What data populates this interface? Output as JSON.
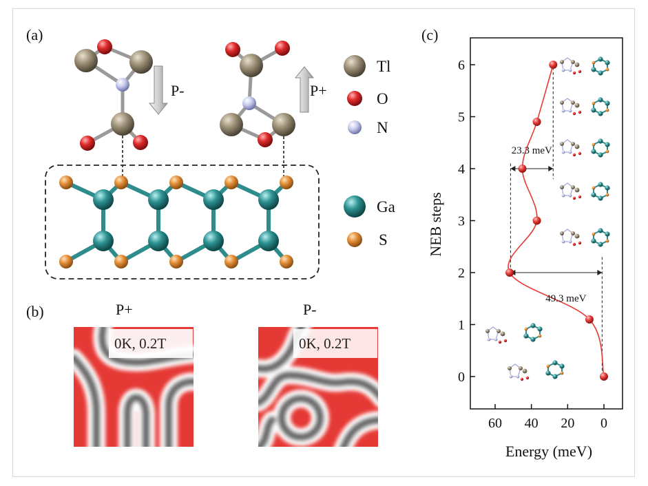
{
  "panels": {
    "a": {
      "label": "(a)"
    },
    "b": {
      "label": "(b)"
    },
    "c": {
      "label": "(c)"
    }
  },
  "legend": {
    "items": [
      {
        "symbol": "Tl",
        "color": "#8b7d63"
      },
      {
        "symbol": "O",
        "color": "#d32f2f"
      },
      {
        "symbol": "N",
        "color": "#b9bde3"
      },
      {
        "symbol": "Ga",
        "color": "#2f8c8c"
      },
      {
        "symbol": "S",
        "color": "#e0913f"
      }
    ]
  },
  "polarization": {
    "p_minus": "P-",
    "p_plus": "P+"
  },
  "maps": {
    "left": {
      "title": "P+",
      "condition": "0K, 0.2T"
    },
    "right": {
      "title": "P-",
      "condition": "0K, 0.2T"
    },
    "colors": {
      "domain_a": "#e53935",
      "domain_b": "#6d6d6d",
      "wall": "#ffffff"
    }
  },
  "chart_data": {
    "type": "line",
    "xlabel": "Energy (meV)",
    "ylabel": "NEB steps",
    "xlim": [
      60,
      0
    ],
    "ylim": [
      0,
      6
    ],
    "x_ticks": [
      "60",
      "40",
      "20",
      "0"
    ],
    "y_ticks": [
      "0",
      "1",
      "2",
      "3",
      "4",
      "5",
      "6"
    ],
    "series": [
      {
        "color": "#e53935",
        "points": [
          {
            "energy": 0.0,
            "step": 0
          },
          {
            "energy": 8.0,
            "step": 1.1
          },
          {
            "energy": 52.0,
            "step": 2
          },
          {
            "energy": 37.0,
            "step": 3
          },
          {
            "energy": 45.0,
            "step": 4
          },
          {
            "energy": 37.0,
            "step": 4.9
          },
          {
            "energy": 28.0,
            "step": 6
          }
        ]
      }
    ],
    "annotations": [
      {
        "text": "23.3 meV",
        "from_energy": 51.5,
        "to_energy": 28.0,
        "at_step": 4
      },
      {
        "text": "49.3 meV",
        "from_energy": 51.5,
        "to_energy": 1.0,
        "at_step": 2
      }
    ]
  }
}
